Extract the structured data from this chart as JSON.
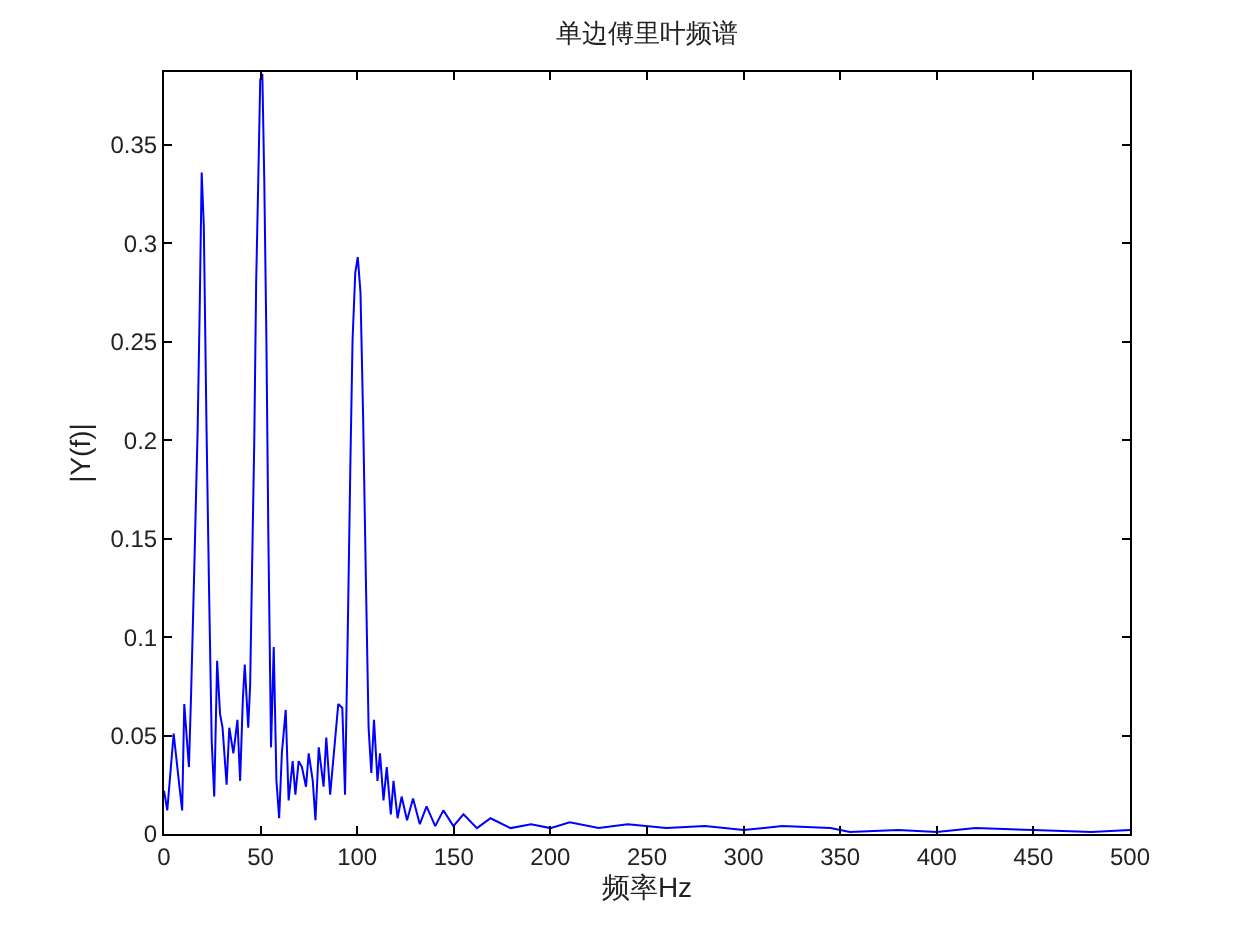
{
  "chart_data": {
    "type": "line",
    "title": "单边傅里叶频谱",
    "xlabel": "频率Hz",
    "ylabel": "|Y(f)|",
    "x": [
      0,
      1.7,
      5,
      8,
      9.4,
      10.5,
      12.9,
      14,
      15.7,
      17.4,
      18.5,
      19.5,
      20.6,
      22,
      23.3,
      24.7,
      26,
      27.5,
      29,
      30.3,
      32.4,
      33.8,
      35.9,
      38,
      39.4,
      40.8,
      41.8,
      43.6,
      44.6,
      45.6,
      46.7,
      47.7,
      48.8,
      49.8,
      50.9,
      51.9,
      53,
      54,
      55.4,
      56.8,
      58.2,
      59.6,
      61,
      63,
      64.5,
      66.6,
      68,
      69.7,
      71.4,
      73.5,
      74.9,
      77,
      78.4,
      80.1,
      82.6,
      84,
      86,
      88.2,
      90.2,
      92.3,
      93.7,
      95.1,
      96.5,
      97.6,
      99,
      100.3,
      101.7,
      103.1,
      104.5,
      105.9,
      107.3,
      108.7,
      110.5,
      111.8,
      113.6,
      115.3,
      117.4,
      118.8,
      120.9,
      123,
      125.8,
      128.9,
      132.4,
      135.9,
      140.4,
      144.6,
      149.8,
      155,
      162,
      169,
      179.4,
      190,
      200,
      210,
      225,
      240,
      260,
      280,
      300,
      320,
      345,
      355,
      380,
      400,
      420,
      450,
      480,
      500
    ],
    "series": [
      {
        "color": "#0000ff",
        "values": [
          0.022,
          0.012,
          0.051,
          0.024,
          0.012,
          0.066,
          0.034,
          0.07,
          0.136,
          0.205,
          0.268,
          0.336,
          0.309,
          0.207,
          0.125,
          0.047,
          0.019,
          0.088,
          0.061,
          0.054,
          0.025,
          0.054,
          0.041,
          0.058,
          0.027,
          0.068,
          0.086,
          0.054,
          0.076,
          0.136,
          0.198,
          0.28,
          0.332,
          0.383,
          0.386,
          0.332,
          0.251,
          0.153,
          0.044,
          0.095,
          0.027,
          0.008,
          0.041,
          0.063,
          0.017,
          0.037,
          0.02,
          0.037,
          0.034,
          0.024,
          0.041,
          0.027,
          0.007,
          0.044,
          0.024,
          0.049,
          0.02,
          0.044,
          0.066,
          0.064,
          0.02,
          0.102,
          0.19,
          0.251,
          0.285,
          0.293,
          0.275,
          0.21,
          0.129,
          0.054,
          0.031,
          0.058,
          0.027,
          0.041,
          0.017,
          0.034,
          0.01,
          0.027,
          0.008,
          0.019,
          0.007,
          0.018,
          0.005,
          0.014,
          0.004,
          0.012,
          0.004,
          0.01,
          0.003,
          0.008,
          0.003,
          0.005,
          0.003,
          0.006,
          0.003,
          0.005,
          0.003,
          0.004,
          0.002,
          0.004,
          0.003,
          0.001,
          0.002,
          0.001,
          0.003,
          0.002,
          0.001,
          0.002
        ]
      }
    ],
    "xlim": [
      0,
      500
    ],
    "xticks": [
      0,
      50,
      100,
      150,
      200,
      250,
      300,
      350,
      400,
      450,
      500
    ],
    "ylim": [
      0,
      0.387
    ],
    "yticks": [
      0,
      0.05,
      0.1,
      0.15,
      0.2,
      0.25,
      0.3,
      0.35
    ],
    "grid": false,
    "marker": "none",
    "line_style": "solid"
  }
}
